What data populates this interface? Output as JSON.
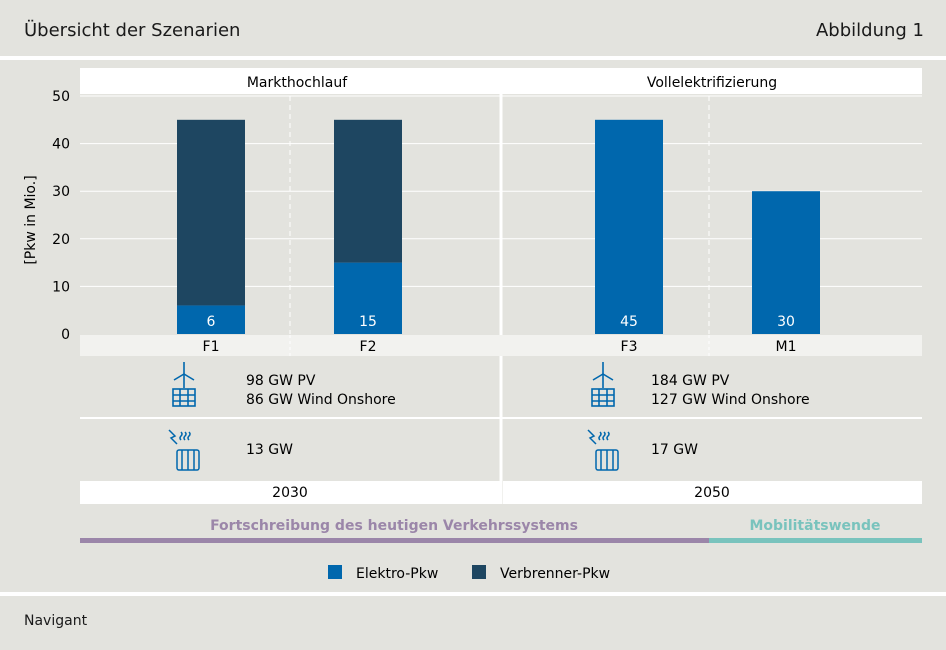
{
  "header": {
    "title": "Übersicht der Szenarien",
    "figure_label": "Abbildung 1"
  },
  "footer": {
    "source": "Navigant"
  },
  "panels": [
    {
      "title": "Markthochlauf"
    },
    {
      "title": "Vollelektrifizierung"
    }
  ],
  "info": {
    "left": {
      "renewables_line1": "98 GW PV",
      "renewables_line2": "86 GW Wind Onshore",
      "heat": "13 GW",
      "year": "2030"
    },
    "right": {
      "renewables_line1": "184 GW PV",
      "renewables_line2": "127 GW Wind Onshore",
      "heat": "17 GW",
      "year": "2050"
    }
  },
  "icons": {
    "renewables": "wind-solar-icon",
    "heat": "heating-radiator-icon"
  },
  "timeline": {
    "left_label": "Fortschreibung des heutigen Verkehrssystems",
    "right_label": "Mobilitätswende",
    "left_color": "#9b86a9",
    "right_color": "#79c3bd"
  },
  "legend": [
    {
      "label": "Elektro-Pkw",
      "color": "#0067ad"
    },
    {
      "label": "Verbrenner-Pkw",
      "color": "#1e4661"
    }
  ],
  "chart_data": {
    "type": "bar",
    "stacked": true,
    "categories": [
      "F1",
      "F2",
      "F3",
      "M1"
    ],
    "series": [
      {
        "name": "Elektro-Pkw",
        "values": [
          6,
          15,
          45,
          30
        ],
        "color": "#0067ad"
      },
      {
        "name": "Verbrenner-Pkw",
        "values": [
          39,
          30,
          0,
          0
        ],
        "color": "#1e4661"
      }
    ],
    "data_labels": [
      "6",
      "15",
      "45",
      "30"
    ],
    "ylabel": "[Pkw in Mio.]",
    "ylim": [
      0,
      50
    ],
    "yticks": [
      0,
      10,
      20,
      30,
      40,
      50
    ],
    "grid": true
  }
}
